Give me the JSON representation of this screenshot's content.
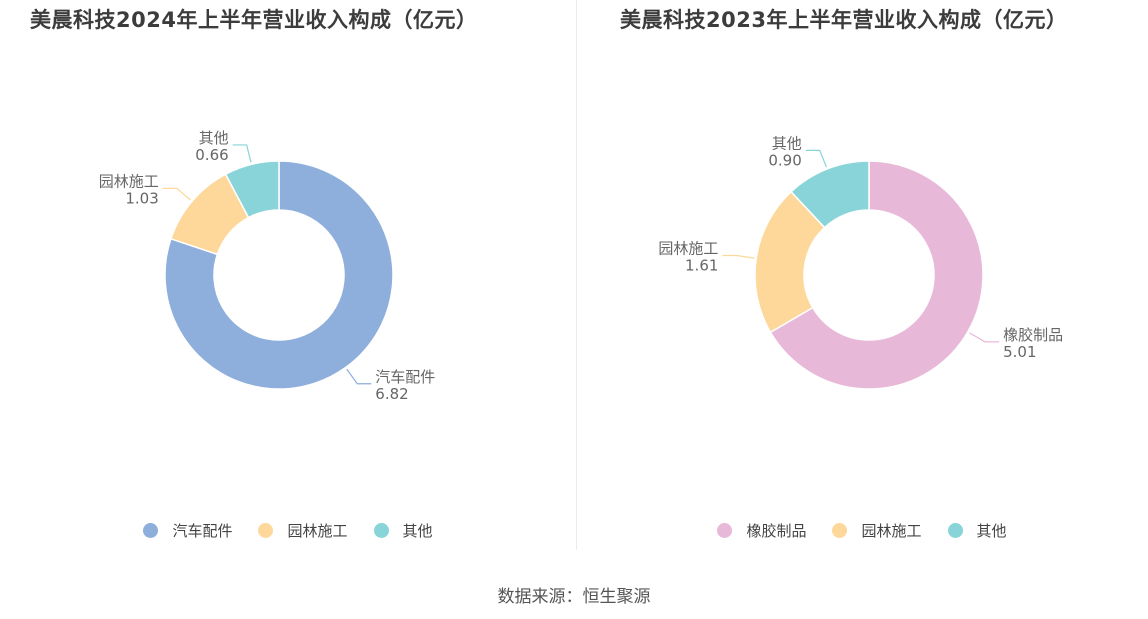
{
  "chart_data": [
    {
      "type": "pie",
      "donut": true,
      "title": "美晨科技2024年上半年营业收入构成（亿元）",
      "categories": [
        "汽车配件",
        "园林施工",
        "其他"
      ],
      "values": [
        6.82,
        1.03,
        0.66
      ],
      "value_labels": [
        "6.82",
        "1.03",
        "0.66"
      ],
      "colors": [
        "#8eaedb",
        "#fdd89a",
        "#89d4d8"
      ],
      "legend": "bottom"
    },
    {
      "type": "pie",
      "donut": true,
      "title": "美晨科技2023年上半年营业收入构成（亿元）",
      "categories": [
        "橡胶制品",
        "园林施工",
        "其他"
      ],
      "values": [
        5.01,
        1.61,
        0.9
      ],
      "value_labels": [
        "5.01",
        "1.61",
        "0.90"
      ],
      "colors": [
        "#e7b8d8",
        "#fdd89a",
        "#89d4d8"
      ],
      "legend": "bottom"
    }
  ],
  "source": "数据来源：恒生聚源"
}
